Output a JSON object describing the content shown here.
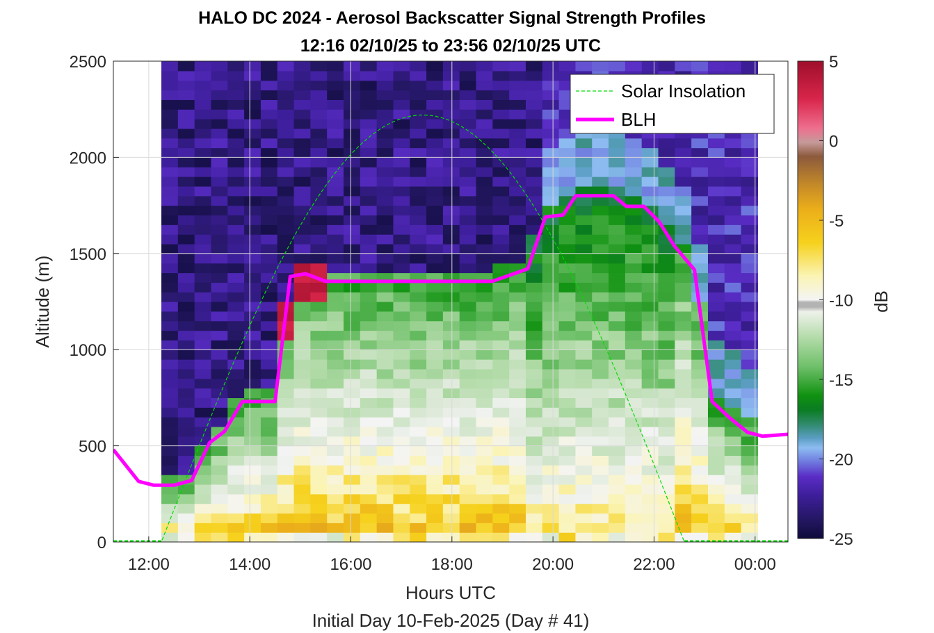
{
  "chart_data": {
    "type": "heatmap",
    "title": "HALO DC 2024 - Aerosol Backscatter Signal Strength Profiles",
    "subtitle": "12:16 02/10/25 to 23:56 02/10/25  UTC",
    "xlabel": "Hours UTC",
    "xlabel2": "Initial Day 10-Feb-2025 (Day # 41)",
    "ylabel": "Altitude (m)",
    "colorbar_label": "dB",
    "x_ticks": [
      "12:00",
      "14:00",
      "16:00",
      "18:00",
      "20:00",
      "22:00",
      "00:00"
    ],
    "y_ticks": [
      "0",
      "500",
      "1000",
      "1500",
      "2000",
      "2500"
    ],
    "colorbar_ticks": [
      "5",
      "0",
      "-5",
      "-10",
      "-15",
      "-20",
      "-25"
    ],
    "xlim_hours": [
      11.3,
      24.65
    ],
    "ylim": [
      0,
      2500
    ],
    "clim": [
      -25,
      5
    ],
    "grid": true,
    "legend_position": "top-right",
    "legend": [
      {
        "name": "Solar Insolation",
        "color": "#00dd00",
        "style": "dashed"
      },
      {
        "name": "BLH",
        "color": "#ff00ff",
        "style": "solid"
      }
    ],
    "blh": {
      "x_hours": [
        11.3,
        11.8,
        12.1,
        12.5,
        12.85,
        13.2,
        13.5,
        13.85,
        14.15,
        14.5,
        14.8,
        15.1,
        15.5,
        16,
        17,
        18,
        18.8,
        19.5,
        19.85,
        20.2,
        20.45,
        20.85,
        21.2,
        21.45,
        21.8,
        22.1,
        22.4,
        22.8,
        23.15,
        23.5,
        23.85,
        24.15,
        24.65
      ],
      "values": [
        480,
        315,
        295,
        295,
        320,
        515,
        575,
        730,
        730,
        730,
        1380,
        1395,
        1355,
        1355,
        1355,
        1355,
        1355,
        1420,
        1690,
        1700,
        1800,
        1800,
        1800,
        1745,
        1745,
        1665,
        1540,
        1415,
        730,
        645,
        570,
        550,
        560
      ]
    },
    "solar_insolation": {
      "rise_hours": 12.25,
      "set_hours": 22.6,
      "peak_hours": 17.35,
      "peak_altitude": 2220
    },
    "heatmap_extent": {
      "x_hours": [
        12.25,
        24.05
      ],
      "y": [
        0,
        2500
      ]
    }
  }
}
